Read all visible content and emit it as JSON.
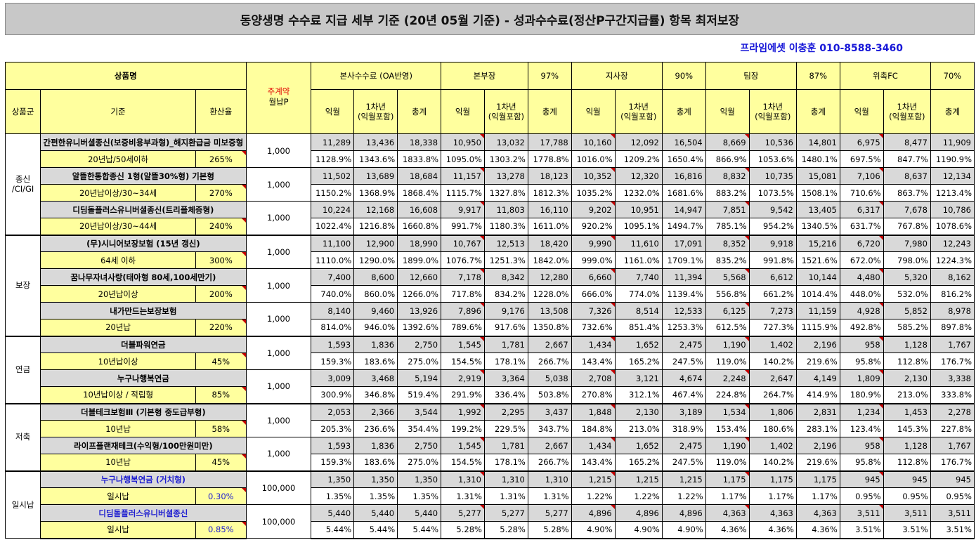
{
  "title": "동양생명 수수료 지급 세부 기준 (20년 05월 기준) - 성과수수료(정산P구간지급률) 항목 최저보장",
  "contact": "프라임에셋 이충훈 010-8588-3460",
  "header": {
    "product_name": "상품명",
    "group": "상품군",
    "basis": "기준",
    "conversion": "환산율",
    "premium_top": "주계약",
    "premium_bottom": "월납P",
    "hq_fee": "본사수수료 (OA반영)",
    "ranks": [
      {
        "name": "본부장",
        "rate": "97%"
      },
      {
        "name": "지사장",
        "rate": "90%"
      },
      {
        "name": "팀장",
        "rate": "87%"
      },
      {
        "name": "위촉FC",
        "rate": "70%"
      }
    ],
    "col_first": "익월",
    "col_year_top": "1차년",
    "col_year_bottom": "(익월포함)",
    "col_total": "총계"
  },
  "groups": [
    {
      "name_top": "종신",
      "name_bottom": "/CI/GI",
      "products": [
        {
          "name": "간편한유니버셜종신(보증비용부과형)_해지환급금 미보증형",
          "basis": "20년납/50세이하",
          "rate": "265%",
          "premium": "1,000",
          "blue": false,
          "nums": [
            "11,289",
            "13,436",
            "18,338",
            "10,950",
            "13,032",
            "17,788",
            "10,160",
            "12,092",
            "16,504",
            "8,669",
            "10,536",
            "14,801",
            "6,975",
            "8,477",
            "11,909"
          ],
          "pcts": [
            "1128.9%",
            "1343.6%",
            "1833.8%",
            "1095.0%",
            "1303.2%",
            "1778.8%",
            "1016.0%",
            "1209.2%",
            "1650.4%",
            "866.9%",
            "1053.6%",
            "1480.1%",
            "697.5%",
            "847.7%",
            "1190.9%"
          ]
        },
        {
          "name": "알뜰한통합종신 1형(알뜰30%형) 기본형",
          "basis": "20년납이상/30~34세",
          "rate": "270%",
          "premium": "1,000",
          "blue": false,
          "nums": [
            "11,502",
            "13,689",
            "18,684",
            "11,157",
            "13,278",
            "18,123",
            "10,352",
            "12,320",
            "16,816",
            "8,832",
            "10,735",
            "15,081",
            "7,106",
            "8,637",
            "12,134"
          ],
          "pcts": [
            "1150.2%",
            "1368.9%",
            "1868.4%",
            "1115.7%",
            "1327.8%",
            "1812.3%",
            "1035.2%",
            "1232.0%",
            "1681.6%",
            "883.2%",
            "1073.5%",
            "1508.1%",
            "710.6%",
            "863.7%",
            "1213.4%"
          ]
        },
        {
          "name": "디딤돌플러스유니버셜종신(트리플체증형)",
          "basis": "20년납이상/30~44세",
          "rate": "240%",
          "premium": "1,000",
          "blue": false,
          "nums": [
            "10,224",
            "12,168",
            "16,608",
            "9,917",
            "11,803",
            "16,110",
            "9,202",
            "10,951",
            "14,947",
            "7,851",
            "9,542",
            "13,405",
            "6,317",
            "7,678",
            "10,786"
          ],
          "pcts": [
            "1022.4%",
            "1216.8%",
            "1660.8%",
            "991.7%",
            "1180.3%",
            "1611.0%",
            "920.2%",
            "1095.1%",
            "1494.7%",
            "785.1%",
            "954.2%",
            "1340.5%",
            "631.7%",
            "767.8%",
            "1078.6%"
          ]
        }
      ]
    },
    {
      "name_top": "보장",
      "name_bottom": "",
      "products": [
        {
          "name": "(무)시니어보장보험 (15년 갱신)",
          "basis": "64세 이하",
          "rate": "300%",
          "premium": "1,000",
          "blue": false,
          "nums": [
            "11,100",
            "12,900",
            "18,990",
            "10,767",
            "12,513",
            "18,420",
            "9,990",
            "11,610",
            "17,091",
            "8,352",
            "9,918",
            "15,216",
            "6,720",
            "7,980",
            "12,243"
          ],
          "pcts": [
            "1110.0%",
            "1290.0%",
            "1899.0%",
            "1076.7%",
            "1251.3%",
            "1842.0%",
            "999.0%",
            "1161.0%",
            "1709.1%",
            "835.2%",
            "991.8%",
            "1521.6%",
            "672.0%",
            "798.0%",
            "1224.3%"
          ]
        },
        {
          "name": "꿈나무자녀사랑(태아형 80세,100세만기)",
          "basis": "20년납이상",
          "rate": "200%",
          "premium": "1,000",
          "blue": false,
          "nums": [
            "7,400",
            "8,600",
            "12,660",
            "7,178",
            "8,342",
            "12,280",
            "6,660",
            "7,740",
            "11,394",
            "5,568",
            "6,612",
            "10,144",
            "4,480",
            "5,320",
            "8,162"
          ],
          "pcts": [
            "740.0%",
            "860.0%",
            "1266.0%",
            "717.8%",
            "834.2%",
            "1228.0%",
            "666.0%",
            "774.0%",
            "1139.4%",
            "556.8%",
            "661.2%",
            "1014.4%",
            "448.0%",
            "532.0%",
            "816.2%"
          ]
        },
        {
          "name": "내가만드는보장보험",
          "basis": "20년납",
          "rate": "220%",
          "premium": "1,000",
          "blue": false,
          "nums": [
            "8,140",
            "9,460",
            "13,926",
            "7,896",
            "9,176",
            "13,508",
            "7,326",
            "8,514",
            "12,533",
            "6,125",
            "7,273",
            "11,159",
            "4,928",
            "5,852",
            "8,978"
          ],
          "pcts": [
            "814.0%",
            "946.0%",
            "1392.6%",
            "789.6%",
            "917.6%",
            "1350.8%",
            "732.6%",
            "851.4%",
            "1253.3%",
            "612.5%",
            "727.3%",
            "1115.9%",
            "492.8%",
            "585.2%",
            "897.8%"
          ]
        }
      ]
    },
    {
      "name_top": "연금",
      "name_bottom": "",
      "products": [
        {
          "name": "더블파워연금",
          "basis": "10년납이상",
          "rate": "45%",
          "premium": "1,000",
          "blue": false,
          "nums": [
            "1,593",
            "1,836",
            "2,750",
            "1,545",
            "1,781",
            "2,667",
            "1,434",
            "1,652",
            "2,475",
            "1,190",
            "1,402",
            "2,196",
            "958",
            "1,128",
            "1,767"
          ],
          "pcts": [
            "159.3%",
            "183.6%",
            "275.0%",
            "154.5%",
            "178.1%",
            "266.7%",
            "143.4%",
            "165.2%",
            "247.5%",
            "119.0%",
            "140.2%",
            "219.6%",
            "95.8%",
            "112.8%",
            "176.7%"
          ]
        },
        {
          "name": "누구나행복연금",
          "basis": "10년납이상 / 적립형",
          "rate": "85%",
          "premium": "1,000",
          "blue": false,
          "nums": [
            "3,009",
            "3,468",
            "5,194",
            "2,919",
            "3,364",
            "5,038",
            "2,708",
            "3,121",
            "4,674",
            "2,248",
            "2,647",
            "4,149",
            "1,809",
            "2,130",
            "3,338"
          ],
          "pcts": [
            "300.9%",
            "346.8%",
            "519.4%",
            "291.9%",
            "336.4%",
            "503.8%",
            "270.8%",
            "312.1%",
            "467.4%",
            "224.8%",
            "264.7%",
            "414.9%",
            "180.9%",
            "213.0%",
            "333.8%"
          ]
        }
      ]
    },
    {
      "name_top": "저축",
      "name_bottom": "",
      "products": [
        {
          "name": "더블테크보험Ⅲ (기본형 중도급부형)",
          "basis": "10년납",
          "rate": "58%",
          "premium": "1,000",
          "blue": false,
          "nums": [
            "2,053",
            "2,366",
            "3,544",
            "1,992",
            "2,295",
            "3,437",
            "1,848",
            "2,130",
            "3,189",
            "1,534",
            "1,806",
            "2,831",
            "1,234",
            "1,453",
            "2,278"
          ],
          "pcts": [
            "205.3%",
            "236.6%",
            "354.4%",
            "199.2%",
            "229.5%",
            "343.7%",
            "184.8%",
            "213.0%",
            "318.9%",
            "153.4%",
            "180.6%",
            "283.1%",
            "123.4%",
            "145.3%",
            "227.8%"
          ]
        },
        {
          "name": "라이프플랜재테크(수익형/100만원미만)",
          "basis": "10년납",
          "rate": "45%",
          "premium": "1,000",
          "blue": false,
          "nums": [
            "1,593",
            "1,836",
            "2,750",
            "1,545",
            "1,781",
            "2,667",
            "1,434",
            "1,652",
            "2,475",
            "1,190",
            "1,402",
            "2,196",
            "958",
            "1,128",
            "1,767"
          ],
          "pcts": [
            "159.3%",
            "183.6%",
            "275.0%",
            "154.5%",
            "178.1%",
            "266.7%",
            "143.4%",
            "165.2%",
            "247.5%",
            "119.0%",
            "140.2%",
            "219.6%",
            "95.8%",
            "112.8%",
            "176.7%"
          ]
        }
      ]
    },
    {
      "name_top": "일시납",
      "name_bottom": "",
      "products": [
        {
          "name": "누구나행복연금 (거치형)",
          "basis": "일시납",
          "rate": "0.30%",
          "premium": "100,000",
          "blue": true,
          "nums": [
            "1,350",
            "1,350",
            "1,350",
            "1,310",
            "1,310",
            "1,310",
            "1,215",
            "1,215",
            "1,215",
            "1,175",
            "1,175",
            "1,175",
            "945",
            "945",
            "945"
          ],
          "pcts": [
            "1.35%",
            "1.35%",
            "1.35%",
            "1.31%",
            "1.31%",
            "1.31%",
            "1.22%",
            "1.22%",
            "1.22%",
            "1.17%",
            "1.17%",
            "1.17%",
            "0.95%",
            "0.95%",
            "0.95%"
          ]
        },
        {
          "name": "디딤돌플러스유니버셜종신",
          "basis": "일시납",
          "rate": "0.85%",
          "premium": "100,000",
          "blue": true,
          "nums": [
            "5,440",
            "5,440",
            "5,440",
            "5,277",
            "5,277",
            "5,277",
            "4,896",
            "4,896",
            "4,896",
            "4,363",
            "4,363",
            "4,363",
            "3,511",
            "3,511",
            "3,511"
          ],
          "pcts": [
            "5.44%",
            "5.44%",
            "5.44%",
            "5.28%",
            "5.28%",
            "5.28%",
            "4.90%",
            "4.90%",
            "4.90%",
            "4.36%",
            "4.36%",
            "4.36%",
            "3.51%",
            "3.51%",
            "3.51%"
          ]
        }
      ]
    }
  ]
}
